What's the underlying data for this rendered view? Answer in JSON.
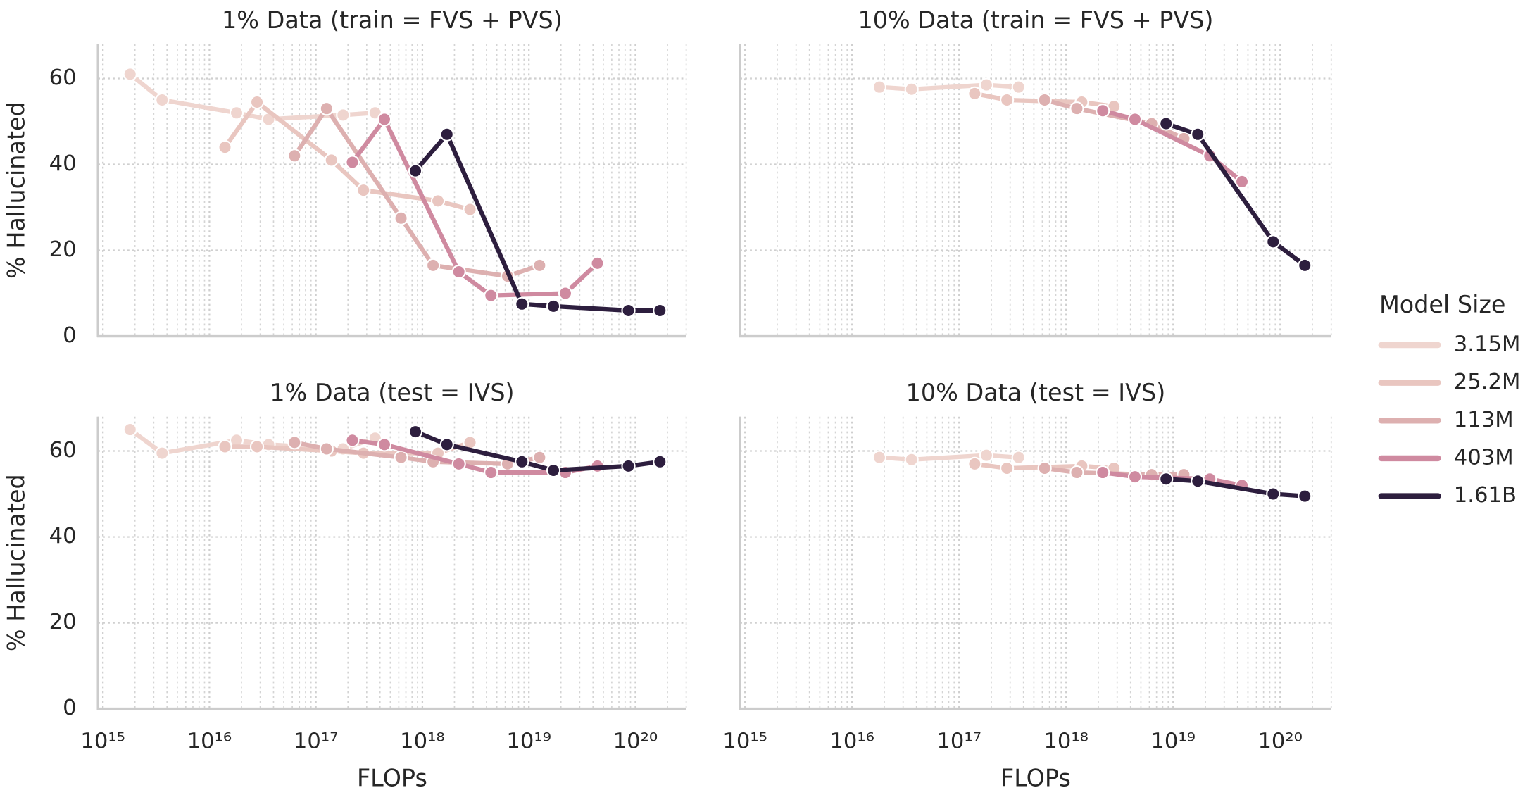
{
  "chart_data": [
    {
      "type": "line",
      "title": "1% Data (train = FVS + PVS)",
      "ylabel": "% Hallucinated",
      "legend_title": "Model Size",
      "legend": "right",
      "log_x": true,
      "grid": true,
      "minor_grid": true,
      "tick_labels": {
        "x": false,
        "y": true
      },
      "xlim": [
        900000000000000.0,
        3e+20
      ],
      "xticks": [
        1000000000000000.0,
        1e+16,
        1e+17,
        1e+18,
        1e+19,
        1e+20
      ],
      "ylim": [
        0,
        68
      ],
      "yticks": [
        0,
        20,
        40,
        60
      ],
      "series": [
        {
          "name": "3.15M",
          "color": "#efd5cf",
          "x": [
            1800000000000000.0,
            3600000000000000.0,
            1.8e+16,
            3.6e+16,
            1.8e+17,
            3.6e+17
          ],
          "values": [
            61,
            55,
            52,
            50.5,
            51.5,
            52
          ]
        },
        {
          "name": "25.2M",
          "color": "#e9c6c0",
          "x": [
            1.4e+16,
            2.8e+16,
            1.4e+17,
            2.8e+17,
            1.4e+18,
            2.8e+18
          ],
          "values": [
            44,
            54.5,
            41,
            34,
            31.5,
            29.5
          ]
        },
        {
          "name": "113M",
          "color": "#ddb0b0",
          "x": [
            6.3e+16,
            1.26e+17,
            6.3e+17,
            1.26e+18,
            6.3e+18,
            1.26e+19
          ],
          "values": [
            42,
            53,
            27.5,
            16.5,
            14,
            16.5
          ]
        },
        {
          "name": "403M",
          "color": "#cf8aa0",
          "x": [
            2.2e+17,
            4.4e+17,
            2.2e+18,
            4.4e+18,
            2.2e+19,
            4.4e+19
          ],
          "values": [
            40.5,
            50.5,
            15,
            9.5,
            10,
            17
          ]
        },
        {
          "name": "1.61B",
          "color": "#2d1e3e",
          "x": [
            8.6e+17,
            1.7e+18,
            8.6e+18,
            1.7e+19,
            8.6e+19,
            1.7e+20
          ],
          "values": [
            38.5,
            47,
            7.5,
            7,
            6,
            6
          ]
        }
      ]
    },
    {
      "type": "line",
      "title": "10% Data (train = FVS + PVS)",
      "log_x": true,
      "grid": true,
      "minor_grid": true,
      "tick_labels": {
        "x": false,
        "y": false
      },
      "xlim": [
        900000000000000.0,
        3e+20
      ],
      "xticks": [
        1000000000000000.0,
        1e+16,
        1e+17,
        1e+18,
        1e+19,
        1e+20
      ],
      "ylim": [
        0,
        68
      ],
      "yticks": [
        0,
        20,
        40,
        60
      ],
      "series": [
        {
          "name": "3.15M",
          "color": "#efd5cf",
          "x": [
            1.8e+16,
            3.6e+16,
            1.8e+17,
            3.6e+17
          ],
          "values": [
            58,
            57.5,
            58.5,
            58
          ]
        },
        {
          "name": "25.2M",
          "color": "#e9c6c0",
          "x": [
            1.4e+17,
            2.8e+17,
            1.4e+18,
            2.8e+18
          ],
          "values": [
            56.5,
            55,
            54.5,
            53.5
          ]
        },
        {
          "name": "113M",
          "color": "#ddb0b0",
          "x": [
            6.3e+17,
            1.26e+18,
            6.3e+18,
            1.26e+19
          ],
          "values": [
            55,
            53,
            49.5,
            46
          ]
        },
        {
          "name": "403M",
          "color": "#cf8aa0",
          "x": [
            2.2e+18,
            4.4e+18,
            2.2e+19,
            4.4e+19
          ],
          "values": [
            52.5,
            50.5,
            42,
            36
          ]
        },
        {
          "name": "1.61B",
          "color": "#2d1e3e",
          "x": [
            8.6e+18,
            1.7e+19,
            8.6e+19,
            1.7e+20
          ],
          "values": [
            49.5,
            47,
            22,
            16.5
          ]
        }
      ]
    },
    {
      "type": "line",
      "title": "1% Data (test = IVS)",
      "ylabel": "% Hallucinated",
      "xlabel": "FLOPs",
      "log_x": true,
      "grid": true,
      "minor_grid": true,
      "tick_labels": {
        "x": true,
        "y": true
      },
      "xlim": [
        900000000000000.0,
        3e+20
      ],
      "xticks": [
        {
          "value": 1000000000000000.0,
          "label": "10¹⁵"
        },
        {
          "value": 1e+16,
          "label": "10¹⁶"
        },
        {
          "value": 1e+17,
          "label": "10¹⁷"
        },
        {
          "value": 1e+18,
          "label": "10¹⁸"
        },
        {
          "value": 1e+19,
          "label": "10¹⁹"
        },
        {
          "value": 1e+20,
          "label": "10²⁰"
        }
      ],
      "ylim": [
        0,
        68
      ],
      "yticks": [
        0,
        20,
        40,
        60
      ],
      "series": [
        {
          "name": "3.15M",
          "color": "#efd5cf",
          "x": [
            1800000000000000.0,
            3600000000000000.0,
            1.8e+16,
            3.6e+16,
            1.8e+17,
            3.6e+17
          ],
          "values": [
            65,
            59.5,
            62.5,
            61.5,
            60.5,
            63
          ]
        },
        {
          "name": "25.2M",
          "color": "#e9c6c0",
          "x": [
            1.4e+16,
            2.8e+16,
            1.4e+17,
            2.8e+17,
            1.4e+18,
            2.8e+18
          ],
          "values": [
            61,
            61,
            60,
            59.5,
            59.5,
            62
          ]
        },
        {
          "name": "113M",
          "color": "#ddb0b0",
          "x": [
            6.3e+16,
            1.26e+17,
            6.3e+17,
            1.26e+18,
            6.3e+18,
            1.26e+19
          ],
          "values": [
            62,
            60.5,
            58.5,
            57.5,
            57,
            58.5
          ]
        },
        {
          "name": "403M",
          "color": "#cf8aa0",
          "x": [
            2.2e+17,
            4.4e+17,
            2.2e+18,
            4.4e+18,
            2.2e+19,
            4.4e+19
          ],
          "values": [
            62.5,
            61.5,
            57,
            55,
            55,
            56.5
          ]
        },
        {
          "name": "1.61B",
          "color": "#2d1e3e",
          "x": [
            8.6e+17,
            1.7e+18,
            8.6e+18,
            1.7e+19,
            8.6e+19,
            1.7e+20
          ],
          "values": [
            64.5,
            61.5,
            57.5,
            55.5,
            56.5,
            57.5
          ]
        }
      ]
    },
    {
      "type": "line",
      "title": "10% Data (test = IVS)",
      "xlabel": "FLOPs",
      "log_x": true,
      "grid": true,
      "minor_grid": true,
      "tick_labels": {
        "x": true,
        "y": false
      },
      "xlim": [
        900000000000000.0,
        3e+20
      ],
      "xticks": [
        {
          "value": 1000000000000000.0,
          "label": "10¹⁵"
        },
        {
          "value": 1e+16,
          "label": "10¹⁶"
        },
        {
          "value": 1e+17,
          "label": "10¹⁷"
        },
        {
          "value": 1e+18,
          "label": "10¹⁸"
        },
        {
          "value": 1e+19,
          "label": "10¹⁹"
        },
        {
          "value": 1e+20,
          "label": "10²⁰"
        }
      ],
      "ylim": [
        0,
        68
      ],
      "yticks": [
        0,
        20,
        40,
        60
      ],
      "series": [
        {
          "name": "3.15M",
          "color": "#efd5cf",
          "x": [
            1.8e+16,
            3.6e+16,
            1.8e+17,
            3.6e+17
          ],
          "values": [
            58.5,
            58,
            59,
            58.5
          ]
        },
        {
          "name": "25.2M",
          "color": "#e9c6c0",
          "x": [
            1.4e+17,
            2.8e+17,
            1.4e+18,
            2.8e+18
          ],
          "values": [
            57,
            56,
            56.5,
            56
          ]
        },
        {
          "name": "113M",
          "color": "#ddb0b0",
          "x": [
            6.3e+17,
            1.26e+18,
            6.3e+18,
            1.26e+19
          ],
          "values": [
            56,
            55,
            54.5,
            54.5
          ]
        },
        {
          "name": "403M",
          "color": "#cf8aa0",
          "x": [
            2.2e+18,
            4.4e+18,
            2.2e+19,
            4.4e+19
          ],
          "values": [
            55,
            54,
            53.5,
            52
          ]
        },
        {
          "name": "1.61B",
          "color": "#2d1e3e",
          "x": [
            8.6e+18,
            1.7e+19,
            8.6e+19,
            1.7e+20
          ],
          "values": [
            53.5,
            53,
            50,
            49.5
          ]
        }
      ]
    }
  ]
}
